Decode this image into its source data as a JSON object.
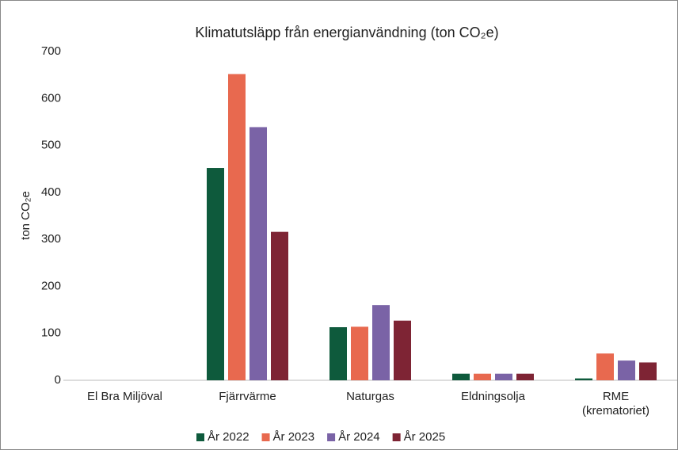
{
  "chart_data": {
    "type": "bar",
    "title": "Klimatutsläpp från energianvändning (ton CO₂e)",
    "y_label": "ton CO₂e",
    "categories": [
      "El Bra Miljöval",
      "Fjärrvärme",
      "Naturgas",
      "Eldningsolja",
      "RME\n(krematoriet)"
    ],
    "series": [
      {
        "name": "År 2022",
        "color": "#0e5a3c",
        "values": [
          0,
          452,
          113,
          14,
          4
        ]
      },
      {
        "name": "År 2023",
        "color": "#e8694f",
        "values": [
          0,
          652,
          114,
          14,
          57
        ]
      },
      {
        "name": "År 2024",
        "color": "#7a63a6",
        "values": [
          0,
          539,
          160,
          14,
          42
        ]
      },
      {
        "name": "År 2025",
        "color": "#7e2434",
        "values": [
          0,
          316,
          127,
          14,
          38
        ]
      }
    ],
    "ylim": [
      0,
      700
    ],
    "yticks": [
      0,
      100,
      200,
      300,
      400,
      500,
      600,
      700
    ],
    "grid": false,
    "legend": "bottom"
  }
}
